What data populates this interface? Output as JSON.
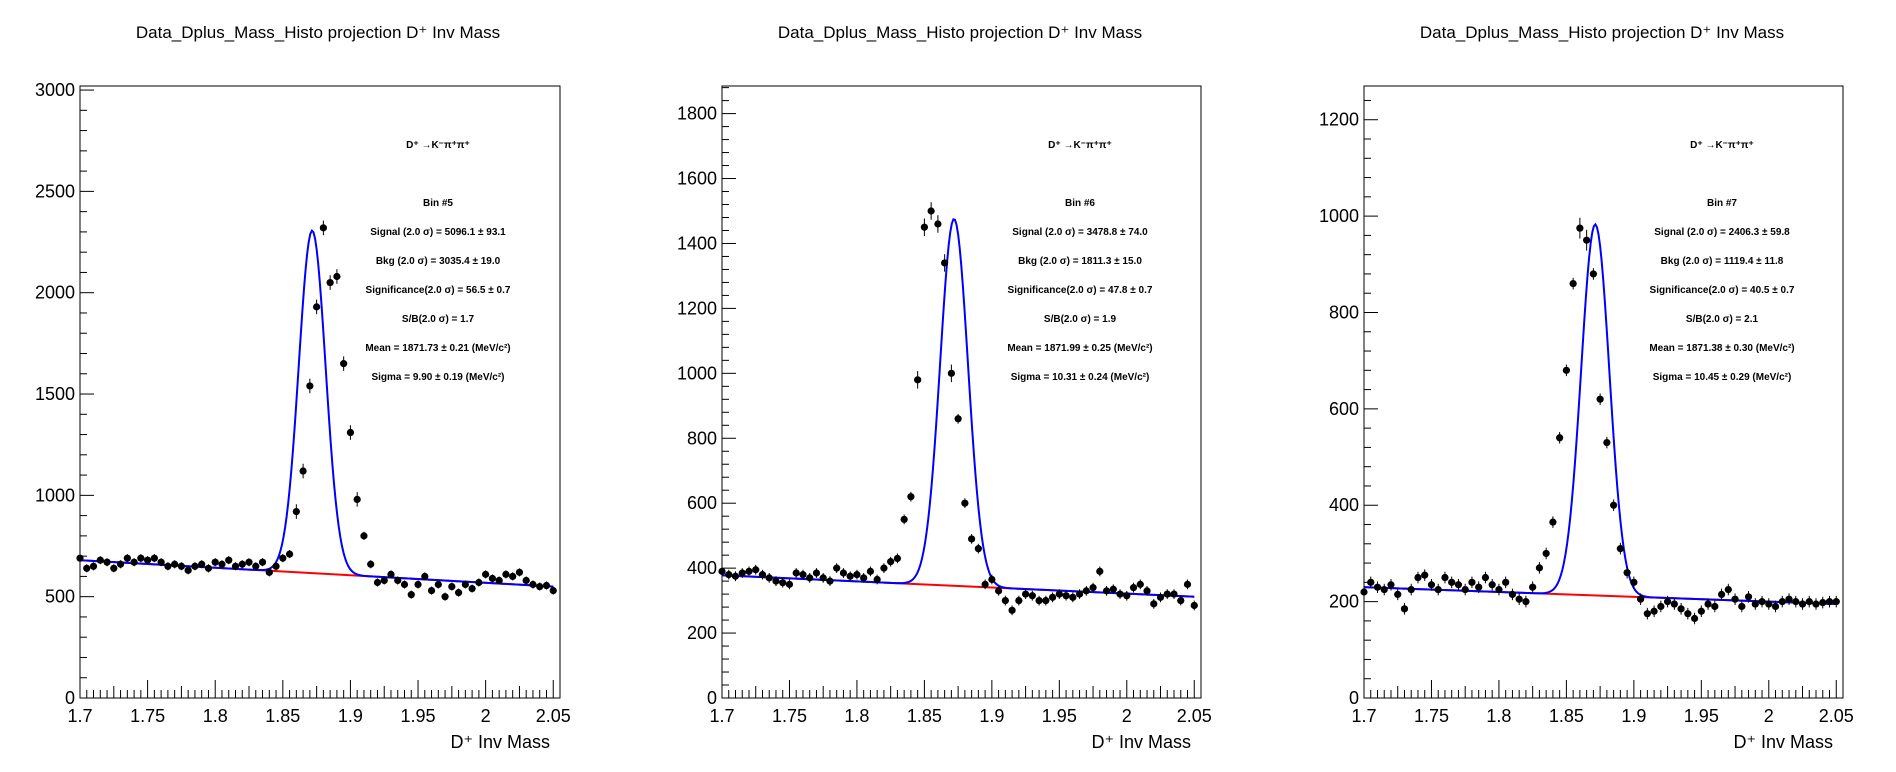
{
  "chart_data": [
    {
      "type": "scatter",
      "title": "Data_Dplus_Mass_Histo projection  D⁺ Inv Mass",
      "xlabel": "D⁺ Inv Mass",
      "ylabel": "",
      "xlim": [
        1.7,
        2.055
      ],
      "ylim": [
        0,
        3020
      ],
      "xticks": [
        "1.7",
        "1.75",
        "1.8",
        "1.85",
        "1.9",
        "1.95",
        "2",
        "2.05"
      ],
      "yticks": [
        "0",
        "500",
        "1000",
        "1500",
        "2000",
        "2500",
        "3000"
      ],
      "decay_label": "D⁺ →K⁻π⁺π⁺",
      "stats": [
        "Bin #5",
        "Signal (2.0 σ) =  5096.1 ± 93.1",
        "Bkg (2.0 σ) =  3035.4 ± 19.0",
        "Significance(2.0 σ) =  56.5 ± 0.7",
        "S/B(2.0 σ) =  1.7",
        "Mean = 1871.73 ± 0.21 (MeV/c²)",
        "Sigma = 9.90 ± 0.19 (MeV/c²)"
      ],
      "x": [
        1.7,
        1.705,
        1.71,
        1.715,
        1.72,
        1.725,
        1.73,
        1.735,
        1.74,
        1.745,
        1.75,
        1.755,
        1.76,
        1.765,
        1.77,
        1.775,
        1.78,
        1.785,
        1.79,
        1.795,
        1.8,
        1.805,
        1.81,
        1.815,
        1.82,
        1.825,
        1.83,
        1.835,
        1.84,
        1.845,
        1.85,
        1.855,
        1.86,
        1.865,
        1.87,
        1.875,
        1.88,
        1.885,
        1.89,
        1.895,
        1.9,
        1.905,
        1.91,
        1.915,
        1.92,
        1.925,
        1.93,
        1.935,
        1.94,
        1.945,
        1.95,
        1.955,
        1.96,
        1.965,
        1.97,
        1.975,
        1.98,
        1.985,
        1.99,
        1.995,
        2.0,
        2.005,
        2.01,
        2.015,
        2.02,
        2.025,
        2.03,
        2.035,
        2.04,
        2.045,
        2.05
      ],
      "values": [
        690,
        640,
        650,
        680,
        670,
        640,
        660,
        690,
        670,
        690,
        680,
        690,
        670,
        650,
        660,
        650,
        630,
        650,
        660,
        640,
        670,
        660,
        680,
        650,
        660,
        670,
        650,
        670,
        620,
        650,
        690,
        710,
        920,
        1120,
        1540,
        1930,
        2320,
        2050,
        2080,
        1650,
        1310,
        980,
        800,
        660,
        570,
        580,
        610,
        580,
        560,
        510,
        560,
        600,
        530,
        560,
        500,
        550,
        520,
        560,
        540,
        570,
        610,
        590,
        580,
        610,
        600,
        620,
        580,
        560,
        550,
        555,
        530
      ],
      "yerr": 20,
      "fit_total": {
        "mean": 1.87173,
        "sigma": 0.0099,
        "amplitude": 1690
      },
      "fit_bkg": {
        "x": [
          1.7,
          2.05
        ],
        "y": [
          680,
          550
        ]
      }
    },
    {
      "type": "scatter",
      "title": "Data_Dplus_Mass_Histo projection  D⁺ Inv Mass",
      "xlabel": "D⁺ Inv Mass",
      "ylabel": "",
      "xlim": [
        1.7,
        2.055
      ],
      "ylim": [
        0,
        1885
      ],
      "xticks": [
        "1.7",
        "1.75",
        "1.8",
        "1.85",
        "1.9",
        "1.95",
        "2",
        "2.05"
      ],
      "yticks": [
        "0",
        "200",
        "400",
        "600",
        "800",
        "1000",
        "1200",
        "1400",
        "1600",
        "1800"
      ],
      "decay_label": "D⁺ →K⁻π⁺π⁺",
      "stats": [
        "Bin #6",
        "Signal (2.0 σ) =  3478.8 ± 74.0",
        "Bkg (2.0 σ) =  1811.3 ± 15.0",
        "Significance(2.0 σ) =  47.8 ± 0.7",
        "S/B(2.0 σ) =  1.9",
        "Mean = 1871.99 ± 0.25 (MeV/c²)",
        "Sigma = 10.31 ± 0.24 (MeV/c²)"
      ],
      "x": [
        1.7,
        1.705,
        1.71,
        1.715,
        1.72,
        1.725,
        1.73,
        1.735,
        1.74,
        1.745,
        1.75,
        1.755,
        1.76,
        1.765,
        1.77,
        1.775,
        1.78,
        1.785,
        1.79,
        1.795,
        1.8,
        1.805,
        1.81,
        1.815,
        1.82,
        1.825,
        1.83,
        1.835,
        1.84,
        1.845,
        1.85,
        1.855,
        1.86,
        1.865,
        1.87,
        1.875,
        1.88,
        1.885,
        1.89,
        1.895,
        1.9,
        1.905,
        1.91,
        1.915,
        1.92,
        1.925,
        1.93,
        1.935,
        1.94,
        1.945,
        1.95,
        1.955,
        1.96,
        1.965,
        1.97,
        1.975,
        1.98,
        1.985,
        1.99,
        1.995,
        2.0,
        2.005,
        2.01,
        2.015,
        2.02,
        2.025,
        2.03,
        2.035,
        2.04,
        2.045,
        2.05
      ],
      "values": [
        390,
        380,
        375,
        385,
        390,
        395,
        380,
        370,
        360,
        355,
        350,
        385,
        380,
        370,
        385,
        370,
        360,
        400,
        385,
        375,
        380,
        370,
        390,
        365,
        400,
        420,
        430,
        550,
        620,
        980,
        1450,
        1500,
        1460,
        1340,
        1000,
        860,
        600,
        490,
        460,
        350,
        365,
        330,
        300,
        270,
        300,
        320,
        315,
        300,
        300,
        310,
        320,
        315,
        310,
        320,
        330,
        340,
        390,
        330,
        335,
        320,
        315,
        340,
        350,
        330,
        290,
        310,
        320,
        320,
        300,
        350,
        285
      ],
      "yerr": 15,
      "fit_total": {
        "mean": 1.87199,
        "sigma": 0.01031,
        "amplitude": 1130
      },
      "fit_bkg": {
        "x": [
          1.7,
          2.05
        ],
        "y": [
          378,
          312
        ]
      }
    },
    {
      "type": "scatter",
      "title": "Data_Dplus_Mass_Histo projection  D⁺ Inv Mass",
      "xlabel": "D⁺ Inv Mass",
      "ylabel": "",
      "xlim": [
        1.7,
        2.055
      ],
      "ylim": [
        0,
        1270
      ],
      "xticks": [
        "1.7",
        "1.75",
        "1.8",
        "1.85",
        "1.9",
        "1.95",
        "2",
        "2.05"
      ],
      "yticks": [
        "0",
        "200",
        "400",
        "600",
        "800",
        "1000",
        "1200"
      ],
      "decay_label": "D⁺ →K⁻π⁺π⁺",
      "stats": [
        "Bin #7",
        "Signal (2.0 σ) =  2406.3 ± 59.8",
        "Bkg (2.0 σ) =  1119.4 ± 11.8",
        "Significance(2.0 σ) =  40.5 ± 0.7",
        "S/B(2.0 σ) =  2.1",
        "Mean = 1871.38 ± 0.30 (MeV/c²)",
        "Sigma = 10.45 ± 0.29 (MeV/c²)"
      ],
      "x": [
        1.7,
        1.705,
        1.71,
        1.715,
        1.72,
        1.725,
        1.73,
        1.735,
        1.74,
        1.745,
        1.75,
        1.755,
        1.76,
        1.765,
        1.77,
        1.775,
        1.78,
        1.785,
        1.79,
        1.795,
        1.8,
        1.805,
        1.81,
        1.815,
        1.82,
        1.825,
        1.83,
        1.835,
        1.84,
        1.845,
        1.85,
        1.855,
        1.86,
        1.865,
        1.87,
        1.875,
        1.88,
        1.885,
        1.89,
        1.895,
        1.9,
        1.905,
        1.91,
        1.915,
        1.92,
        1.925,
        1.93,
        1.935,
        1.94,
        1.945,
        1.95,
        1.955,
        1.96,
        1.965,
        1.97,
        1.975,
        1.98,
        1.985,
        1.99,
        1.995,
        2.0,
        2.005,
        2.01,
        2.015,
        2.02,
        2.025,
        2.03,
        2.035,
        2.04,
        2.045,
        2.05
      ],
      "values": [
        220,
        240,
        230,
        225,
        235,
        215,
        185,
        225,
        250,
        255,
        235,
        225,
        250,
        240,
        235,
        225,
        240,
        230,
        250,
        235,
        225,
        240,
        215,
        205,
        200,
        230,
        270,
        300,
        365,
        540,
        680,
        860,
        975,
        950,
        880,
        620,
        530,
        400,
        310,
        260,
        240,
        205,
        175,
        180,
        190,
        200,
        195,
        185,
        175,
        165,
        180,
        195,
        190,
        215,
        225,
        205,
        190,
        210,
        195,
        200,
        195,
        190,
        200,
        205,
        200,
        195,
        200,
        195,
        198,
        200,
        200
      ],
      "yerr": 12,
      "fit_total": {
        "mean": 1.87138,
        "sigma": 0.01045,
        "amplitude": 770
      },
      "fit_bkg": {
        "x": [
          1.7,
          2.05
        ],
        "y": [
          230,
          195
        ]
      }
    }
  ]
}
